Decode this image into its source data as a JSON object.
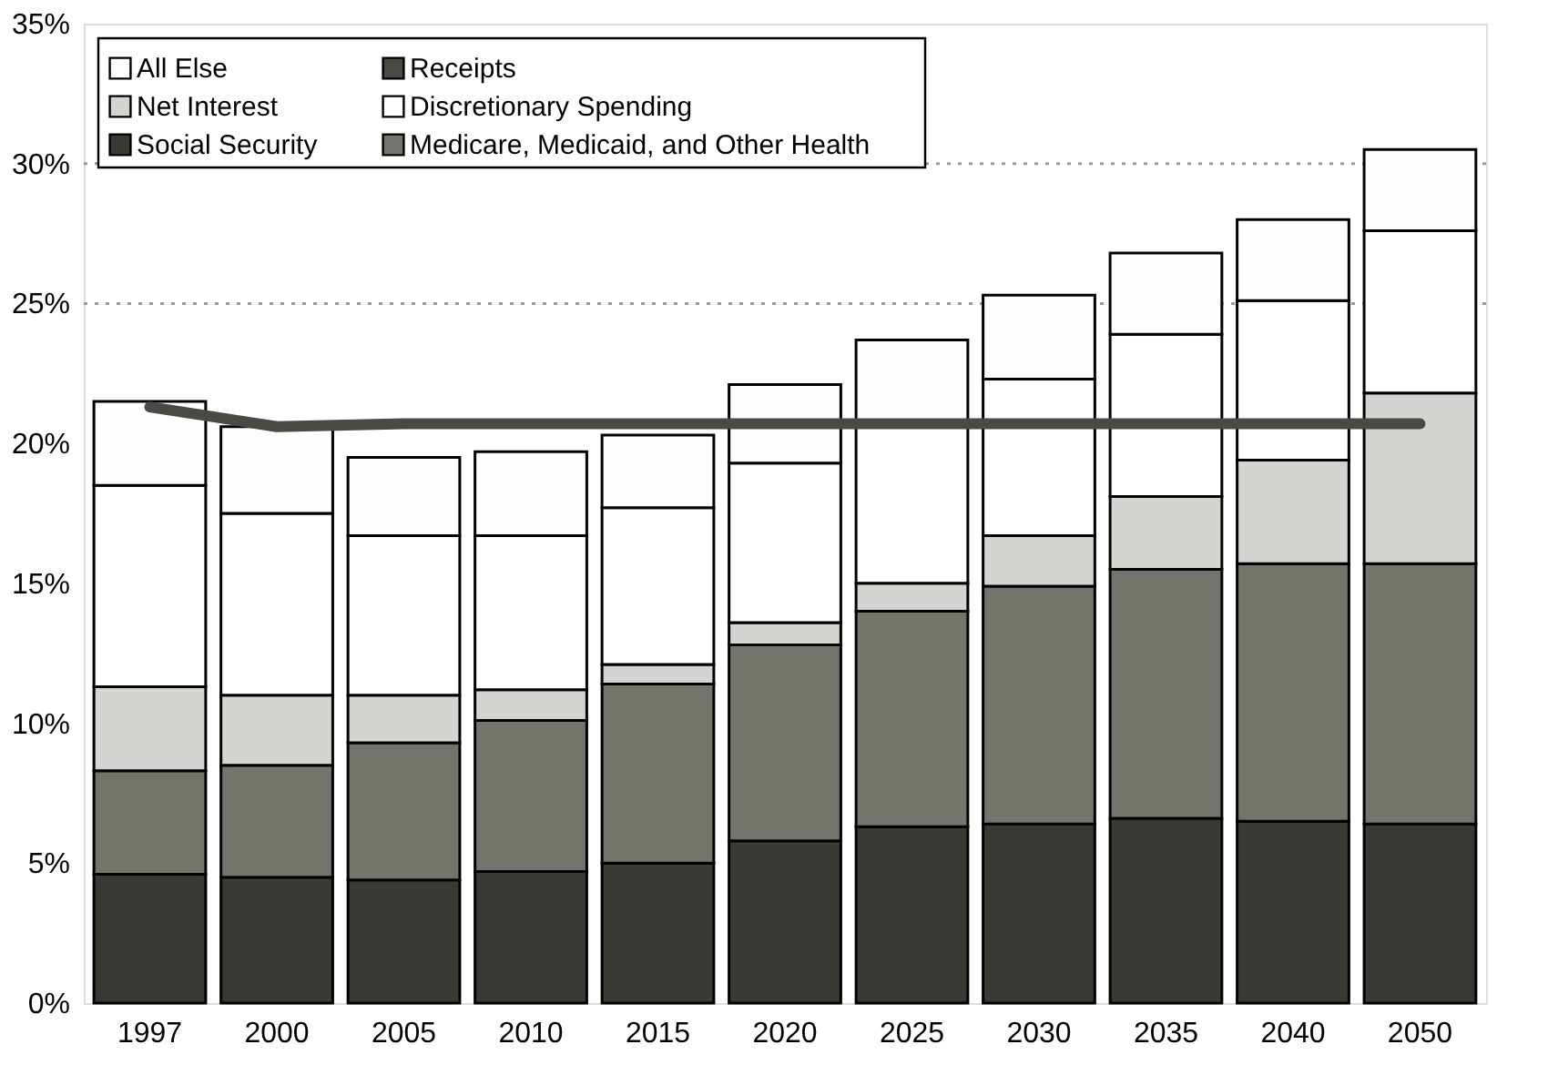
{
  "chart_data": {
    "type": "bar",
    "stacked": true,
    "categories": [
      "1997",
      "2000",
      "2005",
      "2010",
      "2015",
      "2020",
      "2025",
      "2030",
      "2035",
      "2040",
      "2050"
    ],
    "series": [
      {
        "name": "Social Security",
        "color": "#3a3a34",
        "values": [
          4.6,
          4.5,
          4.4,
          4.7,
          5.0,
          5.8,
          6.3,
          6.4,
          6.6,
          6.5,
          6.4
        ]
      },
      {
        "name": "Medicare, Medicaid, and Other Health",
        "color": "#74746c",
        "values": [
          3.7,
          4.0,
          4.9,
          5.4,
          6.4,
          7.0,
          7.7,
          8.5,
          8.9,
          9.2,
          9.3
        ]
      },
      {
        "name": "Net Interest",
        "color": "#d4d4d0",
        "values": [
          3.0,
          2.5,
          1.7,
          1.1,
          0.7,
          0.8,
          1.0,
          1.8,
          2.6,
          3.7,
          6.1
        ]
      },
      {
        "name": "Discretionary Spending",
        "color": "#ffffff",
        "values": [
          7.2,
          6.5,
          5.7,
          5.5,
          5.6,
          5.7,
          5.7,
          5.6,
          5.8,
          5.7,
          5.8
        ]
      },
      {
        "name": "All Else",
        "color": "#fefefe",
        "values": [
          3.0,
          3.1,
          2.8,
          3.0,
          2.6,
          2.8,
          3.0,
          3.0,
          2.9,
          2.9,
          2.9
        ]
      },
      {
        "name": "Receipts",
        "type": "line",
        "color": "#4a4a44",
        "values": [
          21.3,
          20.6,
          20.7,
          20.7,
          20.7,
          20.7,
          20.7,
          20.7,
          20.7,
          20.7,
          20.7
        ]
      }
    ],
    "ylim": [
      0,
      35
    ],
    "yticks": [
      {
        "value": 0,
        "label": "0%"
      },
      {
        "value": 5,
        "label": "5%"
      },
      {
        "value": 10,
        "label": "10%"
      },
      {
        "value": 15,
        "label": "15%"
      },
      {
        "value": 20,
        "label": "20%"
      },
      {
        "value": 25,
        "label": "25%"
      },
      {
        "value": 30,
        "label": "30%"
      },
      {
        "value": 35,
        "label": "35%"
      }
    ],
    "ref_lines": [
      {
        "axis": "y",
        "value": 25,
        "color": "#999999",
        "line_style": "dotted"
      },
      {
        "axis": "y",
        "value": 30,
        "color": "#999999",
        "line_style": "dotted"
      }
    ],
    "legend": "top left",
    "grid": false
  }
}
